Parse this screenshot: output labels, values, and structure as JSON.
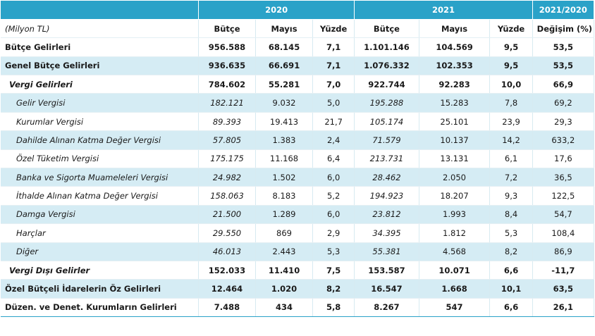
{
  "headers": {
    "year1": "2020",
    "year2": "2021",
    "change": "2021/2020",
    "unit": "(Milyon TL)",
    "sub": [
      "Bütçe",
      "Mayıs",
      "Yüzde",
      "Bütçe",
      "Mayıs",
      "Yüzde",
      "Değişim (%)"
    ]
  },
  "rows": [
    {
      "label": "Bütçe Gelirleri",
      "level": "main",
      "band": false,
      "values": [
        "956.588",
        "68.145",
        "7,1",
        "1.101.146",
        "104.569",
        "9,5",
        "53,5"
      ]
    },
    {
      "label": "Genel Bütçe Gelirleri",
      "level": "main",
      "band": true,
      "values": [
        "936.635",
        "66.691",
        "7,1",
        "1.076.332",
        "102.353",
        "9,5",
        "53,5"
      ]
    },
    {
      "label": "Vergi Gelirleri",
      "level": "group",
      "band": false,
      "values": [
        "784.602",
        "55.281",
        "7,0",
        "922.744",
        "92.283",
        "10,0",
        "66,9"
      ]
    },
    {
      "label": "Gelir Vergisi",
      "level": "item",
      "band": true,
      "values": [
        "182.121",
        "9.032",
        "5,0",
        "195.288",
        "15.283",
        "7,8",
        "69,2"
      ]
    },
    {
      "label": "Kurumlar Vergisi",
      "level": "item",
      "band": false,
      "values": [
        "89.393",
        "19.413",
        "21,7",
        "105.174",
        "25.101",
        "23,9",
        "29,3"
      ]
    },
    {
      "label": "Dahilde Alınan Katma Değer Vergisi",
      "level": "item",
      "band": true,
      "values": [
        "57.805",
        "1.383",
        "2,4",
        "71.579",
        "10.137",
        "14,2",
        "633,2"
      ]
    },
    {
      "label": "Özel Tüketim Vergisi",
      "level": "item",
      "band": false,
      "values": [
        "175.175",
        "11.168",
        "6,4",
        "213.731",
        "13.131",
        "6,1",
        "17,6"
      ]
    },
    {
      "label": "Banka ve Sigorta Muameleleri Vergisi",
      "level": "item",
      "band": true,
      "values": [
        "24.982",
        "1.502",
        "6,0",
        "28.462",
        "2.050",
        "7,2",
        "36,5"
      ]
    },
    {
      "label": "İthalde Alınan Katma Değer Vergisi",
      "level": "item",
      "band": false,
      "values": [
        "158.063",
        "8.183",
        "5,2",
        "194.923",
        "18.207",
        "9,3",
        "122,5"
      ]
    },
    {
      "label": "Damga Vergisi",
      "level": "item",
      "band": true,
      "values": [
        "21.500",
        "1.289",
        "6,0",
        "23.812",
        "1.993",
        "8,4",
        "54,7"
      ]
    },
    {
      "label": "Harçlar",
      "level": "item",
      "band": false,
      "values": [
        "29.550",
        "869",
        "2,9",
        "34.395",
        "1.812",
        "5,3",
        "108,4"
      ]
    },
    {
      "label": "Diğer",
      "level": "item",
      "band": true,
      "values": [
        "46.013",
        "2.443",
        "5,3",
        "55.381",
        "4.568",
        "8,2",
        "86,9"
      ]
    },
    {
      "label": "Vergi Dışı Gelirler",
      "level": "group",
      "band": false,
      "values": [
        "152.033",
        "11.410",
        "7,5",
        "153.587",
        "10.071",
        "6,6",
        "-11,7"
      ]
    },
    {
      "label": "Özel Bütçeli İdarelerin Öz Gelirleri",
      "level": "main",
      "band": true,
      "values": [
        "12.464",
        "1.020",
        "8,2",
        "16.547",
        "1.668",
        "10,1",
        "63,5"
      ]
    },
    {
      "label": "Düzen. ve Denet. Kurumların Gelirleri",
      "level": "main",
      "band": false,
      "values": [
        "7.488",
        "434",
        "5,8",
        "8.267",
        "547",
        "6,6",
        "26,1"
      ]
    }
  ],
  "colors": {
    "header": "#2aa2c8",
    "band": "#d5ecf4",
    "text": "#1a1a1a"
  }
}
